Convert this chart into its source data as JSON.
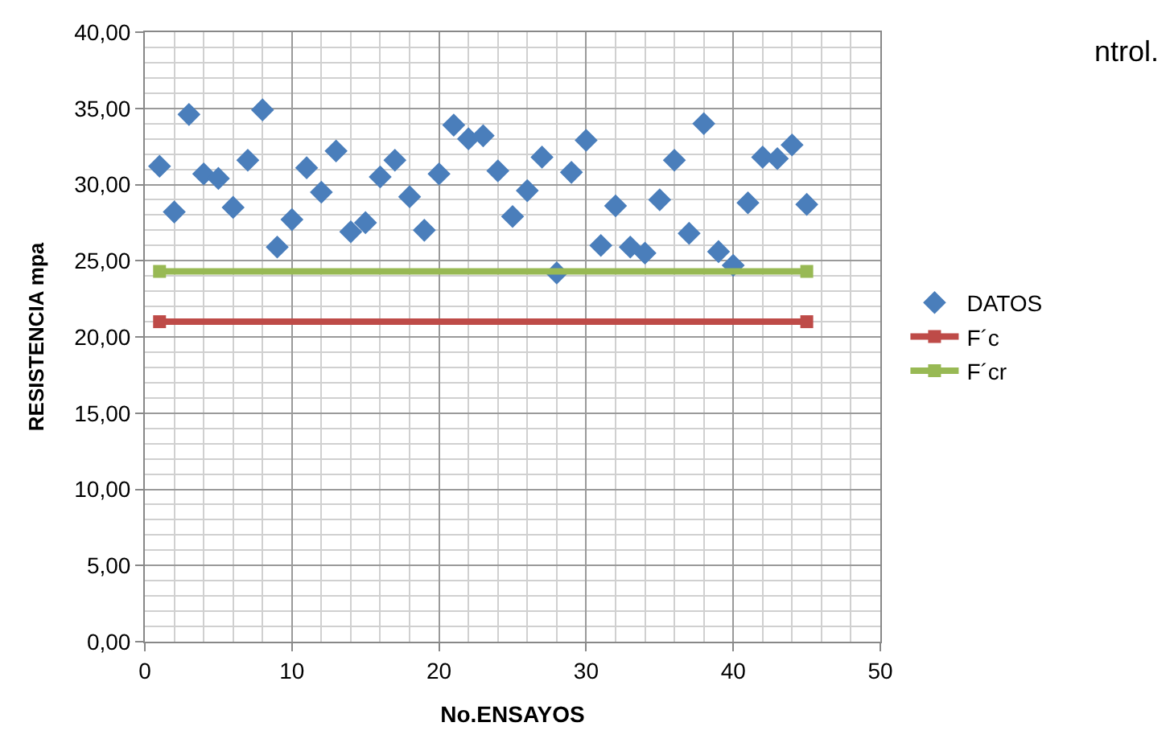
{
  "chart_data": {
    "type": "scatter",
    "xlabel": "No.ENSAYOS",
    "ylabel": "RESISTENCIA mpa",
    "series": [
      {
        "name": "DATOS",
        "color": "#4a7ebb",
        "marker": "diamond",
        "x": [
          1,
          2,
          3,
          4,
          5,
          6,
          7,
          8,
          9,
          10,
          11,
          12,
          13,
          14,
          15,
          16,
          17,
          18,
          19,
          20,
          21,
          22,
          23,
          24,
          25,
          26,
          27,
          28,
          29,
          30,
          31,
          32,
          33,
          34,
          35,
          36,
          37,
          38,
          39,
          40,
          41,
          42,
          43,
          44,
          45
        ],
        "values": [
          31.2,
          28.2,
          34.6,
          30.7,
          30.4,
          28.5,
          31.6,
          34.9,
          25.9,
          27.7,
          31.1,
          29.5,
          32.2,
          26.9,
          27.5,
          30.5,
          31.6,
          29.2,
          27.0,
          30.7,
          33.9,
          33.0,
          33.2,
          30.9,
          27.9,
          29.6,
          31.8,
          24.2,
          30.8,
          32.9,
          26.0,
          28.6,
          25.9,
          25.5,
          29.0,
          31.6,
          26.8,
          34.0,
          25.6,
          24.7,
          28.8,
          31.8,
          31.7,
          32.6,
          28.7
        ]
      },
      {
        "name": "F´c",
        "type": "line",
        "color": "#be4b48",
        "marker": "square",
        "x": [
          1,
          45
        ],
        "values": [
          21.0,
          21.0
        ]
      },
      {
        "name": "F´cr",
        "type": "line",
        "color": "#98b954",
        "marker": "square",
        "x": [
          1,
          45
        ],
        "values": [
          24.3,
          24.3
        ]
      }
    ],
    "xlim": [
      0,
      50
    ],
    "xticks": [
      0,
      10,
      20,
      30,
      40,
      50
    ],
    "ylim": [
      0,
      40
    ],
    "yticks": [
      {
        "value": 0,
        "label": "0,00"
      },
      {
        "value": 5,
        "label": "5,00"
      },
      {
        "value": 10,
        "label": "10,00"
      },
      {
        "value": 15,
        "label": "15,00"
      },
      {
        "value": 20,
        "label": "20,00"
      },
      {
        "value": 25,
        "label": "25,00"
      },
      {
        "value": 30,
        "label": "30,00"
      },
      {
        "value": 35,
        "label": "35,00"
      },
      {
        "value": 40,
        "label": "40,00"
      }
    ],
    "grid": true,
    "legend": "right",
    "annotations": [
      "ntrol."
    ]
  }
}
